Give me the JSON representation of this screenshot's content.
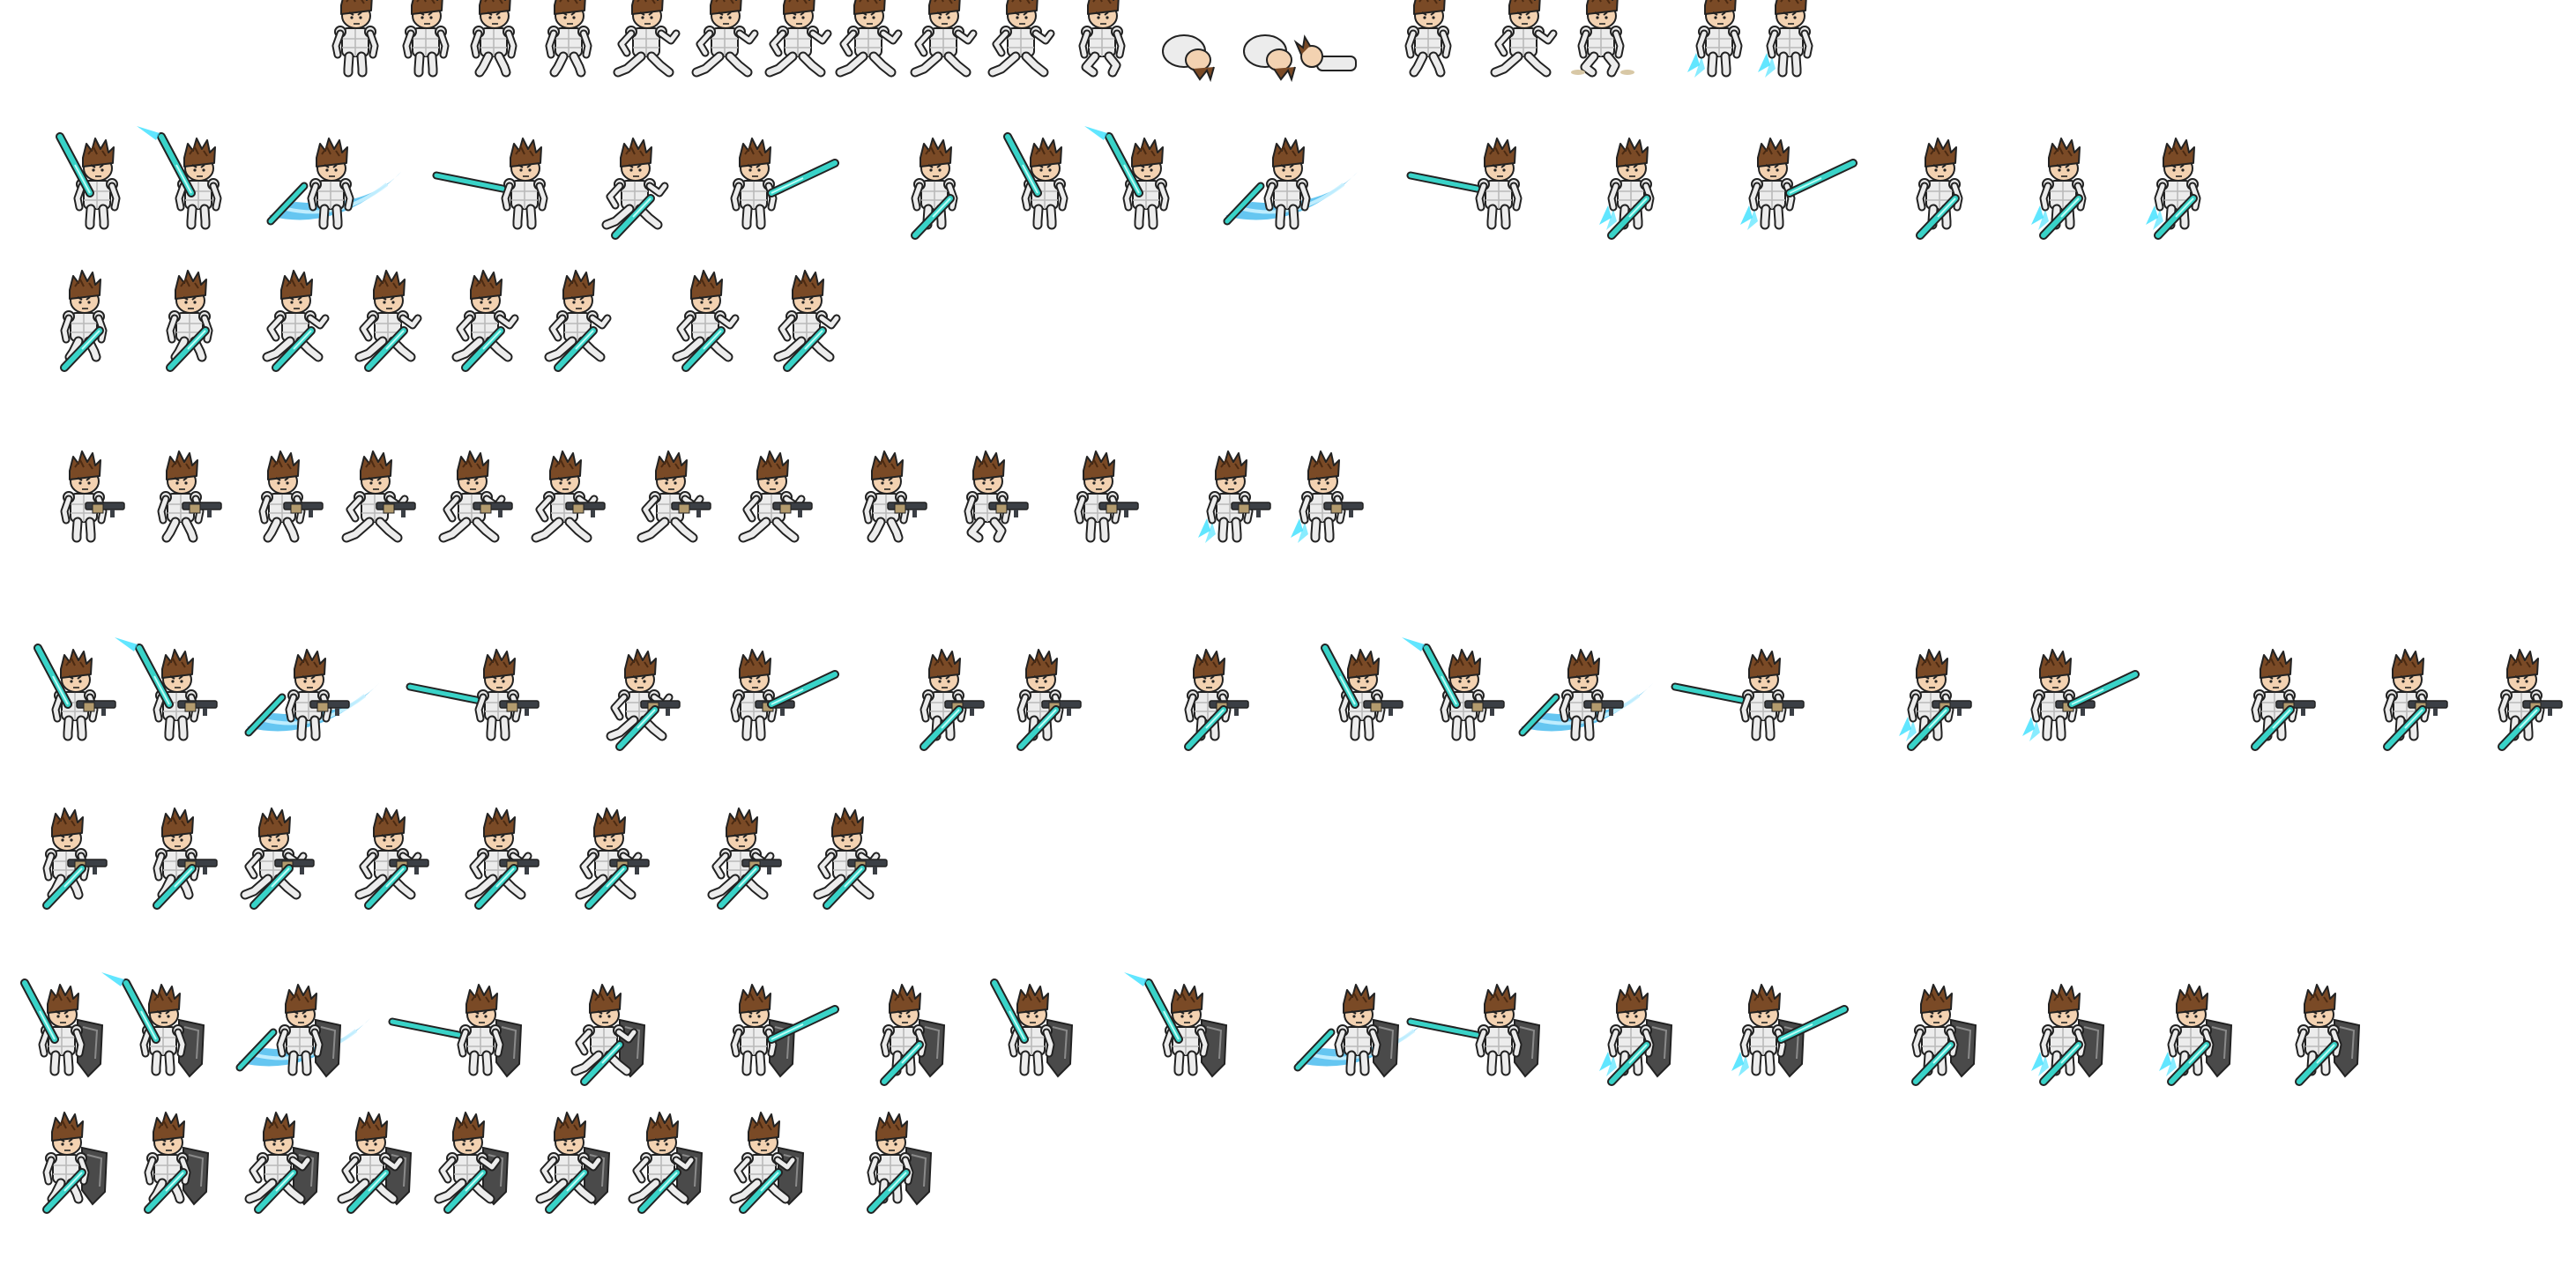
{
  "sprite_sheet": {
    "background": "#ffffff",
    "colors": {
      "hair": "#7a4a26",
      "hair_dark": "#4b2a12",
      "skin": "#f3d2b1",
      "armor": "#ececec",
      "armor_shade": "#b9b9b9",
      "outline": "#222222",
      "blade": "#39d3c8",
      "blade_light": "#b9fff7",
      "slash": "#3fb8ee",
      "slash_light": "#c9f1ff",
      "gun": "#3b3f45",
      "gun_accent": "#b39b6e",
      "shield": "#4a4a4a",
      "shield_light": "#8a8a8a",
      "jet": "#39e0ff",
      "dust": "#d8c8a6"
    },
    "rows": [
      {
        "name": "unarmed-actions",
        "frames": [
          "stand",
          "stand-front",
          "walk",
          "walk",
          "run",
          "run",
          "run",
          "run",
          "run",
          "run",
          "crouch",
          "tumble",
          "tumble",
          "knocked-down",
          "walk",
          "run",
          "land-dust",
          "jet-up",
          "jet-up"
        ]
      },
      {
        "name": "sword-attacks",
        "frames": [
          "sword-raise",
          "sword-raise-glow",
          "slash-wave",
          "thrust-left",
          "sword-run",
          "thrust-right",
          "sword-stand",
          "sword-raise",
          "sword-raise-glow",
          "slash-wave",
          "thrust-left",
          "sword-jet",
          "sword-thrust-jet",
          "sword-stand",
          "sword-jet-stand",
          "sword-jet-stand"
        ]
      },
      {
        "name": "sword-movement",
        "frames": [
          "sword-walk",
          "sword-walk",
          "sword-run",
          "sword-run",
          "sword-run",
          "sword-run",
          "sword-run",
          "sword-run"
        ]
      },
      {
        "name": "rifle-actions",
        "frames": [
          "rifle-stand",
          "rifle-walk",
          "rifle-walk",
          "rifle-run",
          "rifle-run",
          "rifle-run",
          "rifle-run",
          "rifle-run",
          "rifle-walk",
          "rifle-crouch",
          "rifle-aim",
          "rifle-jet",
          "rifle-jet"
        ]
      },
      {
        "name": "sword-rifle-attacks",
        "frames": [
          "sr-raise",
          "sr-raise-glow",
          "sr-slash-wave",
          "sr-thrust-left",
          "sr-run",
          "sr-thrust-right",
          "sr-stand",
          "sr-aim",
          "sr-stand",
          "sr-raise",
          "sr-raise-glow",
          "sr-slash-wave",
          "sr-thrust-left",
          "sr-jet",
          "sr-thrust-jet",
          "sr-aim",
          "sr-stand",
          "sr-stand"
        ]
      },
      {
        "name": "sword-rifle-movement",
        "frames": [
          "sr-walk",
          "sr-walk",
          "sr-run",
          "sr-run",
          "sr-run",
          "sr-run",
          "sr-run",
          "sr-run"
        ]
      },
      {
        "name": "sword-shield-attacks",
        "frames": [
          "ss-raise",
          "ss-raise-glow",
          "ss-slash-wave",
          "ss-thrust-left",
          "ss-run",
          "ss-thrust-right",
          "ss-stand",
          "ss-raise",
          "ss-raise-glow",
          "ss-slash-wave",
          "ss-thrust-left",
          "ss-jet",
          "ss-thrust-jet",
          "ss-stand",
          "ss-jet-stand",
          "ss-jet-stand",
          "ss-guard"
        ]
      },
      {
        "name": "sword-shield-movement",
        "frames": [
          "ss-walk",
          "ss-walk",
          "ss-run",
          "ss-run",
          "ss-run",
          "ss-run",
          "ss-run",
          "ss-run",
          "ss-guard"
        ]
      }
    ]
  }
}
